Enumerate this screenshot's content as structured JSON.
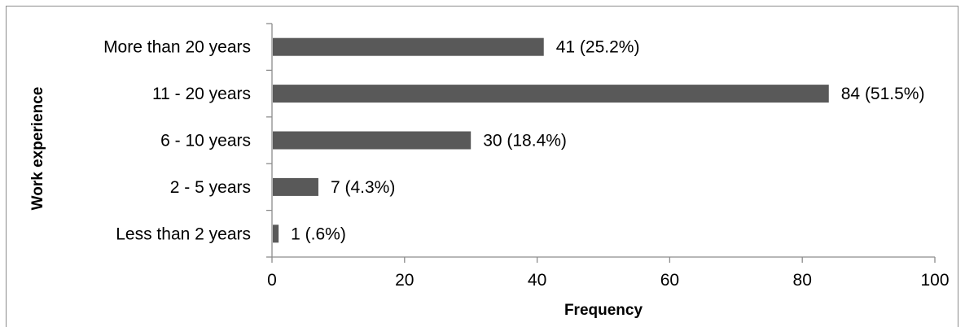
{
  "chart_data": {
    "type": "bar",
    "orientation": "horizontal",
    "categories": [
      "Less than 2 years",
      "2 - 5 years",
      "6 - 10 years",
      "11 - 20 years",
      "More than 20 years"
    ],
    "values": [
      1,
      7,
      30,
      84,
      41
    ],
    "data_labels": [
      "1 (.6%)",
      "7 (4.3%)",
      "30 (18.4%)",
      "84 (51.5%)",
      "41 (25.2%)"
    ],
    "xlabel": "Frequency",
    "ylabel": "Work experience",
    "xlim": [
      0,
      100
    ],
    "x_ticks": [
      0,
      20,
      40,
      60,
      80,
      100
    ],
    "x_tick_labels": [
      "0",
      "20",
      "40",
      "60",
      "80",
      "100"
    ],
    "grid": false,
    "legend": "none",
    "bar_color": "#595959"
  }
}
